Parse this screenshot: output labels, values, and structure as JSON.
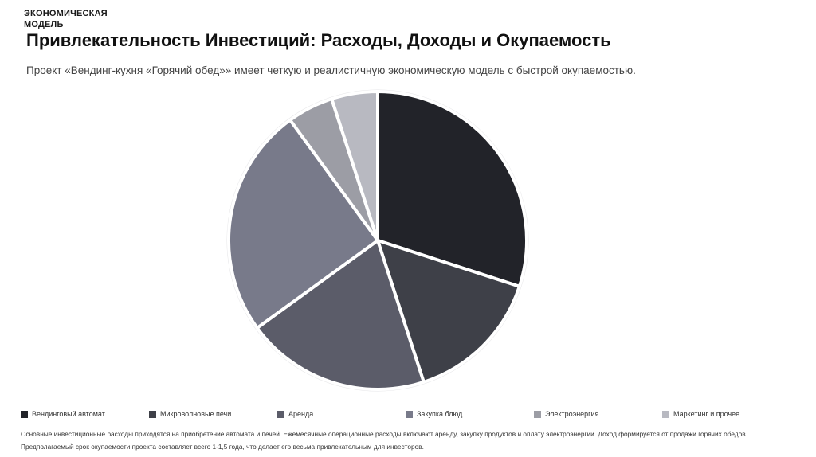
{
  "header": {
    "section_label": "ЭКОНОМИЧЕСКАЯ МОДЕЛЬ",
    "title": "Привлекательность Инвестиций: Расходы, Доходы и Окупаемость",
    "subtitle": "Проект «Вендинг-кухня «Горячий обед»» имеет четкую и реалистичную экономическую модель с быстрой окупаемостью."
  },
  "chart_data": {
    "type": "pie",
    "title": "",
    "categories": [
      "Вендинговый автомат",
      "Микроволновые печи",
      "Аренда",
      "Закупка блюд",
      "Электроэнергия",
      "Маркетинг и прочее"
    ],
    "values": [
      30,
      15,
      20,
      25,
      5,
      5
    ],
    "colors": [
      "#222329",
      "#3e4048",
      "#5b5c69",
      "#787a8a",
      "#9c9da5",
      "#b8b9c1"
    ],
    "legend_position": "bottom"
  },
  "footer": {
    "text": "Основные инвестиционные расходы приходятся на приобретение автомата и печей. Ежемесячные операционные расходы включают аренду, закупку продуктов и оплату электроэнергии. Доход формируется от продажи горячих обедов. Предполагаемый срок окупаемости проекта составляет всего 1-1,5 года, что делает его весьма привлекательным для инвесторов."
  }
}
